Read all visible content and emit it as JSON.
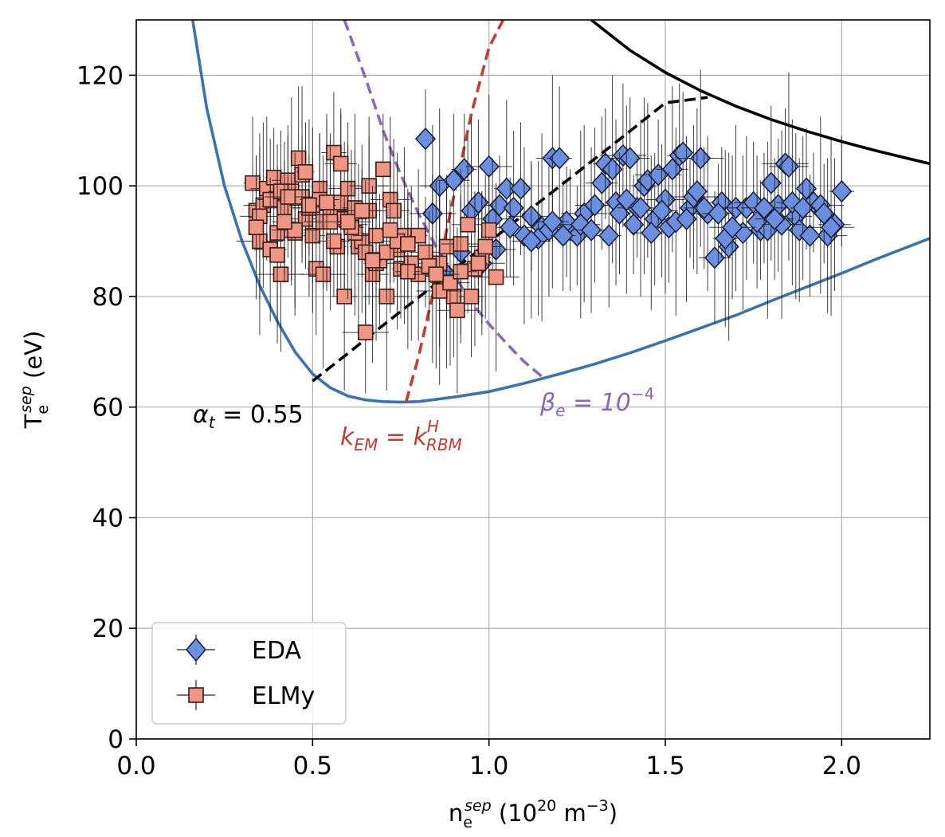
{
  "chart_data": {
    "type": "scatter",
    "xlim": [
      0.0,
      2.25
    ],
    "ylim": [
      0,
      130
    ],
    "grid": true,
    "x_ticks": [
      "0.0",
      "0.5",
      "1.0",
      "1.5",
      "2.0"
    ],
    "y_ticks": [
      "0",
      "20",
      "40",
      "60",
      "80",
      "100",
      "120"
    ],
    "x_tick_values": [
      0.0,
      0.5,
      1.0,
      1.5,
      2.0
    ],
    "y_tick_values": [
      0,
      20,
      40,
      60,
      80,
      100,
      120
    ],
    "xlabel": {
      "base": "n",
      "sub": "e",
      "sup": "sep",
      "rest": " (10",
      "exp": "20",
      "units": " m",
      "units_exp": "−3",
      "close": ")"
    },
    "ylabel": {
      "base": "T",
      "sub": "e",
      "sup": "sep",
      "rest": " (eV)"
    },
    "legend": {
      "position": "bottom-left",
      "entries": [
        {
          "label": "EDA",
          "marker": "diamond",
          "color": "#6b8fde"
        },
        {
          "label": "ELMy",
          "marker": "square",
          "color": "#ee9584"
        }
      ]
    },
    "annotations": {
      "alpha": {
        "base": "α",
        "sub": "t",
        "rest": " = 0.55",
        "color": "#000000"
      },
      "kem": {
        "base": "k",
        "sub": "EM",
        "mid": " = k",
        "sup": "H",
        "sub2": "RBM",
        "color": "#c33c32"
      },
      "beta": {
        "base": "β",
        "sub": "e",
        "mid": " = 10",
        "sup": "−4",
        "color": "#8e67b6"
      }
    },
    "curves": [
      {
        "name": "blue-boundary",
        "color": "#3a73ad",
        "style": "solid",
        "x": [
          0.16,
          0.2,
          0.25,
          0.3,
          0.35,
          0.4,
          0.45,
          0.5,
          0.55,
          0.6,
          0.65,
          0.7,
          0.75,
          0.8,
          0.9,
          1.0,
          1.1,
          1.2,
          1.3,
          1.4,
          1.5,
          1.6,
          1.7,
          1.8,
          1.9,
          2.0,
          2.1,
          2.25
        ],
        "y": [
          130,
          114,
          100,
          90,
          82,
          75.5,
          70,
          66,
          63.5,
          62,
          61.3,
          61,
          60.9,
          61,
          61.8,
          62.8,
          64.3,
          66,
          67.8,
          69.8,
          72,
          74.3,
          76.6,
          79.2,
          81.7,
          84.2,
          86.8,
          90.5
        ]
      },
      {
        "name": "black-solid",
        "color": "#000000",
        "style": "solid",
        "x": [
          1.29,
          1.4,
          1.5,
          1.6,
          1.7,
          1.8,
          1.9,
          2.0,
          2.1,
          2.25
        ],
        "y": [
          130,
          124.5,
          120.5,
          117.2,
          114.4,
          112,
          109.9,
          108,
          106.3,
          104
        ]
      },
      {
        "name": "alpha-dashed",
        "color": "#000000",
        "style": "dashed",
        "x": [
          0.5,
          0.6,
          0.7,
          0.8,
          0.9,
          1.0,
          1.1,
          1.2,
          1.3,
          1.4,
          1.5,
          1.62
        ],
        "y": [
          64.7,
          69.7,
          74.8,
          79.8,
          84.8,
          89.8,
          94.9,
          99.9,
          104.9,
          109.9,
          115,
          116
        ]
      },
      {
        "name": "kem-dashed",
        "color": "#c33c32",
        "style": "dashed",
        "x": [
          0.765,
          0.8,
          0.85,
          0.9,
          0.95,
          1.0,
          1.04
        ],
        "y": [
          60.9,
          69,
          83,
          98,
          113,
          125,
          130
        ]
      },
      {
        "name": "beta-dashed",
        "color": "#8e67b6",
        "style": "dashed",
        "x": [
          0.59,
          0.65,
          0.7,
          0.75,
          0.8,
          0.85,
          0.9,
          0.95,
          1.0,
          1.05,
          1.1,
          1.16
        ],
        "y": [
          130,
          119.5,
          110,
          102,
          95,
          89,
          84,
          79,
          75,
          71.5,
          68.2,
          65
        ]
      }
    ],
    "series": [
      {
        "name": "EDA",
        "marker": "diamond",
        "color": "#6b8fde",
        "x": [
          0.82,
          0.84,
          0.86,
          0.9,
          0.93,
          0.95,
          0.97,
          1.0,
          1.02,
          1.03,
          1.05,
          1.07,
          1.09,
          1.12,
          1.15,
          1.18,
          1.2,
          1.23,
          1.25,
          1.27,
          1.3,
          1.32,
          1.33,
          1.35,
          1.36,
          1.38,
          1.4,
          1.42,
          1.44,
          1.45,
          1.47,
          1.48,
          1.5,
          1.52,
          1.54,
          1.55,
          1.57,
          1.6,
          1.62,
          1.64,
          1.66,
          1.68,
          1.7,
          1.73,
          1.75,
          1.77,
          1.79,
          1.8,
          1.82,
          1.84,
          1.85,
          1.87,
          1.88,
          1.9,
          1.92,
          1.94,
          1.96,
          1.98,
          2.0,
          0.88,
          0.92,
          0.98,
          1.01,
          1.06,
          1.1,
          1.14,
          1.17,
          1.22,
          1.26,
          1.29,
          1.34,
          1.37,
          1.41,
          1.43,
          1.46,
          1.49,
          1.51,
          1.53,
          1.56,
          1.58,
          1.61,
          1.65,
          1.67,
          1.72,
          1.76,
          1.78,
          1.83,
          1.86,
          1.89,
          1.91,
          1.95,
          1.97,
          1.12,
          1.18,
          1.21,
          1.39,
          1.59,
          1.69,
          1.81
        ],
        "y": [
          108.5,
          95,
          100,
          101,
          103,
          95.5,
          97,
          103.5,
          88.5,
          96.5,
          99.5,
          96,
          99.5,
          94.5,
          92.5,
          105,
          105,
          92,
          91,
          95,
          96.5,
          100.5,
          104,
          103,
          97,
          105.5,
          105,
          96,
          100,
          101,
          94,
          102,
          97.5,
          103,
          105.5,
          106,
          96,
          105,
          95,
          87,
          97,
          89,
          96,
          96,
          97,
          92,
          92,
          100.5,
          96.5,
          104,
          103.5,
          94.5,
          92,
          99.5,
          97,
          96.5,
          91,
          93,
          99,
          84,
          88,
          86,
          94,
          92.5,
          91,
          90.5,
          92,
          93.5,
          93,
          92,
          91,
          95,
          93,
          96,
          91.5,
          95.5,
          92.5,
          93.5,
          94,
          98,
          96,
          95,
          90.5,
          91.5,
          93.5,
          96,
          93,
          97,
          96,
          91,
          95,
          92.5,
          90,
          93.5,
          91,
          97.5,
          99,
          92.5,
          94
        ]
      },
      {
        "name": "ELMy",
        "marker": "square",
        "color": "#ee9584",
        "x": [
          0.33,
          0.34,
          0.35,
          0.36,
          0.37,
          0.38,
          0.39,
          0.4,
          0.41,
          0.42,
          0.43,
          0.44,
          0.45,
          0.46,
          0.47,
          0.48,
          0.49,
          0.5,
          0.51,
          0.52,
          0.53,
          0.54,
          0.55,
          0.56,
          0.57,
          0.58,
          0.59,
          0.6,
          0.61,
          0.62,
          0.63,
          0.64,
          0.65,
          0.66,
          0.67,
          0.68,
          0.69,
          0.7,
          0.71,
          0.72,
          0.73,
          0.74,
          0.75,
          0.76,
          0.78,
          0.8,
          0.82,
          0.84,
          0.86,
          0.88,
          0.9,
          0.92,
          0.94,
          0.96,
          0.98,
          1.0,
          1.02,
          0.35,
          0.38,
          0.41,
          0.44,
          0.47,
          0.5,
          0.53,
          0.56,
          0.59,
          0.62,
          0.65,
          0.68,
          0.71,
          0.74,
          0.77,
          0.8,
          0.83,
          0.86,
          0.89,
          0.92,
          0.95,
          0.97,
          0.4,
          0.45,
          0.52,
          0.58,
          0.66,
          0.72,
          0.34,
          0.43,
          0.49,
          0.55,
          0.61,
          0.67,
          0.77,
          0.85,
          0.91,
          0.99,
          0.42,
          0.48,
          0.54,
          0.6,
          0.64
        ],
        "y": [
          100.5,
          95.5,
          90,
          96.5,
          99.5,
          97.5,
          101.5,
          91.5,
          84,
          96,
          101,
          99,
          91.5,
          105,
          98,
          94,
          96,
          91,
          85,
          99.5,
          84,
          97,
          95.5,
          106,
          89,
          97,
          94,
          99.5,
          93,
          96,
          89,
          90,
          73.5,
          100,
          84,
          86,
          86.5,
          103,
          80,
          97.5,
          95.5,
          88.5,
          85,
          91,
          86,
          84,
          88,
          85,
          86,
          89,
          80,
          89.5,
          93,
          85,
          87,
          92,
          83.5,
          94.5,
          88.5,
          99,
          92,
          102,
          96.5,
          93.5,
          90,
          80,
          91.5,
          88,
          91,
          88,
          90,
          84.5,
          91,
          85.5,
          81,
          82.5,
          84.5,
          80,
          86,
          87.5,
          92,
          97.5,
          104,
          95.5,
          92,
          92.5,
          98,
          96.5,
          93.5,
          92.5,
          86.5,
          89.5,
          84,
          77.5,
          89,
          93.5,
          102.5,
          97,
          93.5,
          95.5
        ]
      }
    ]
  }
}
